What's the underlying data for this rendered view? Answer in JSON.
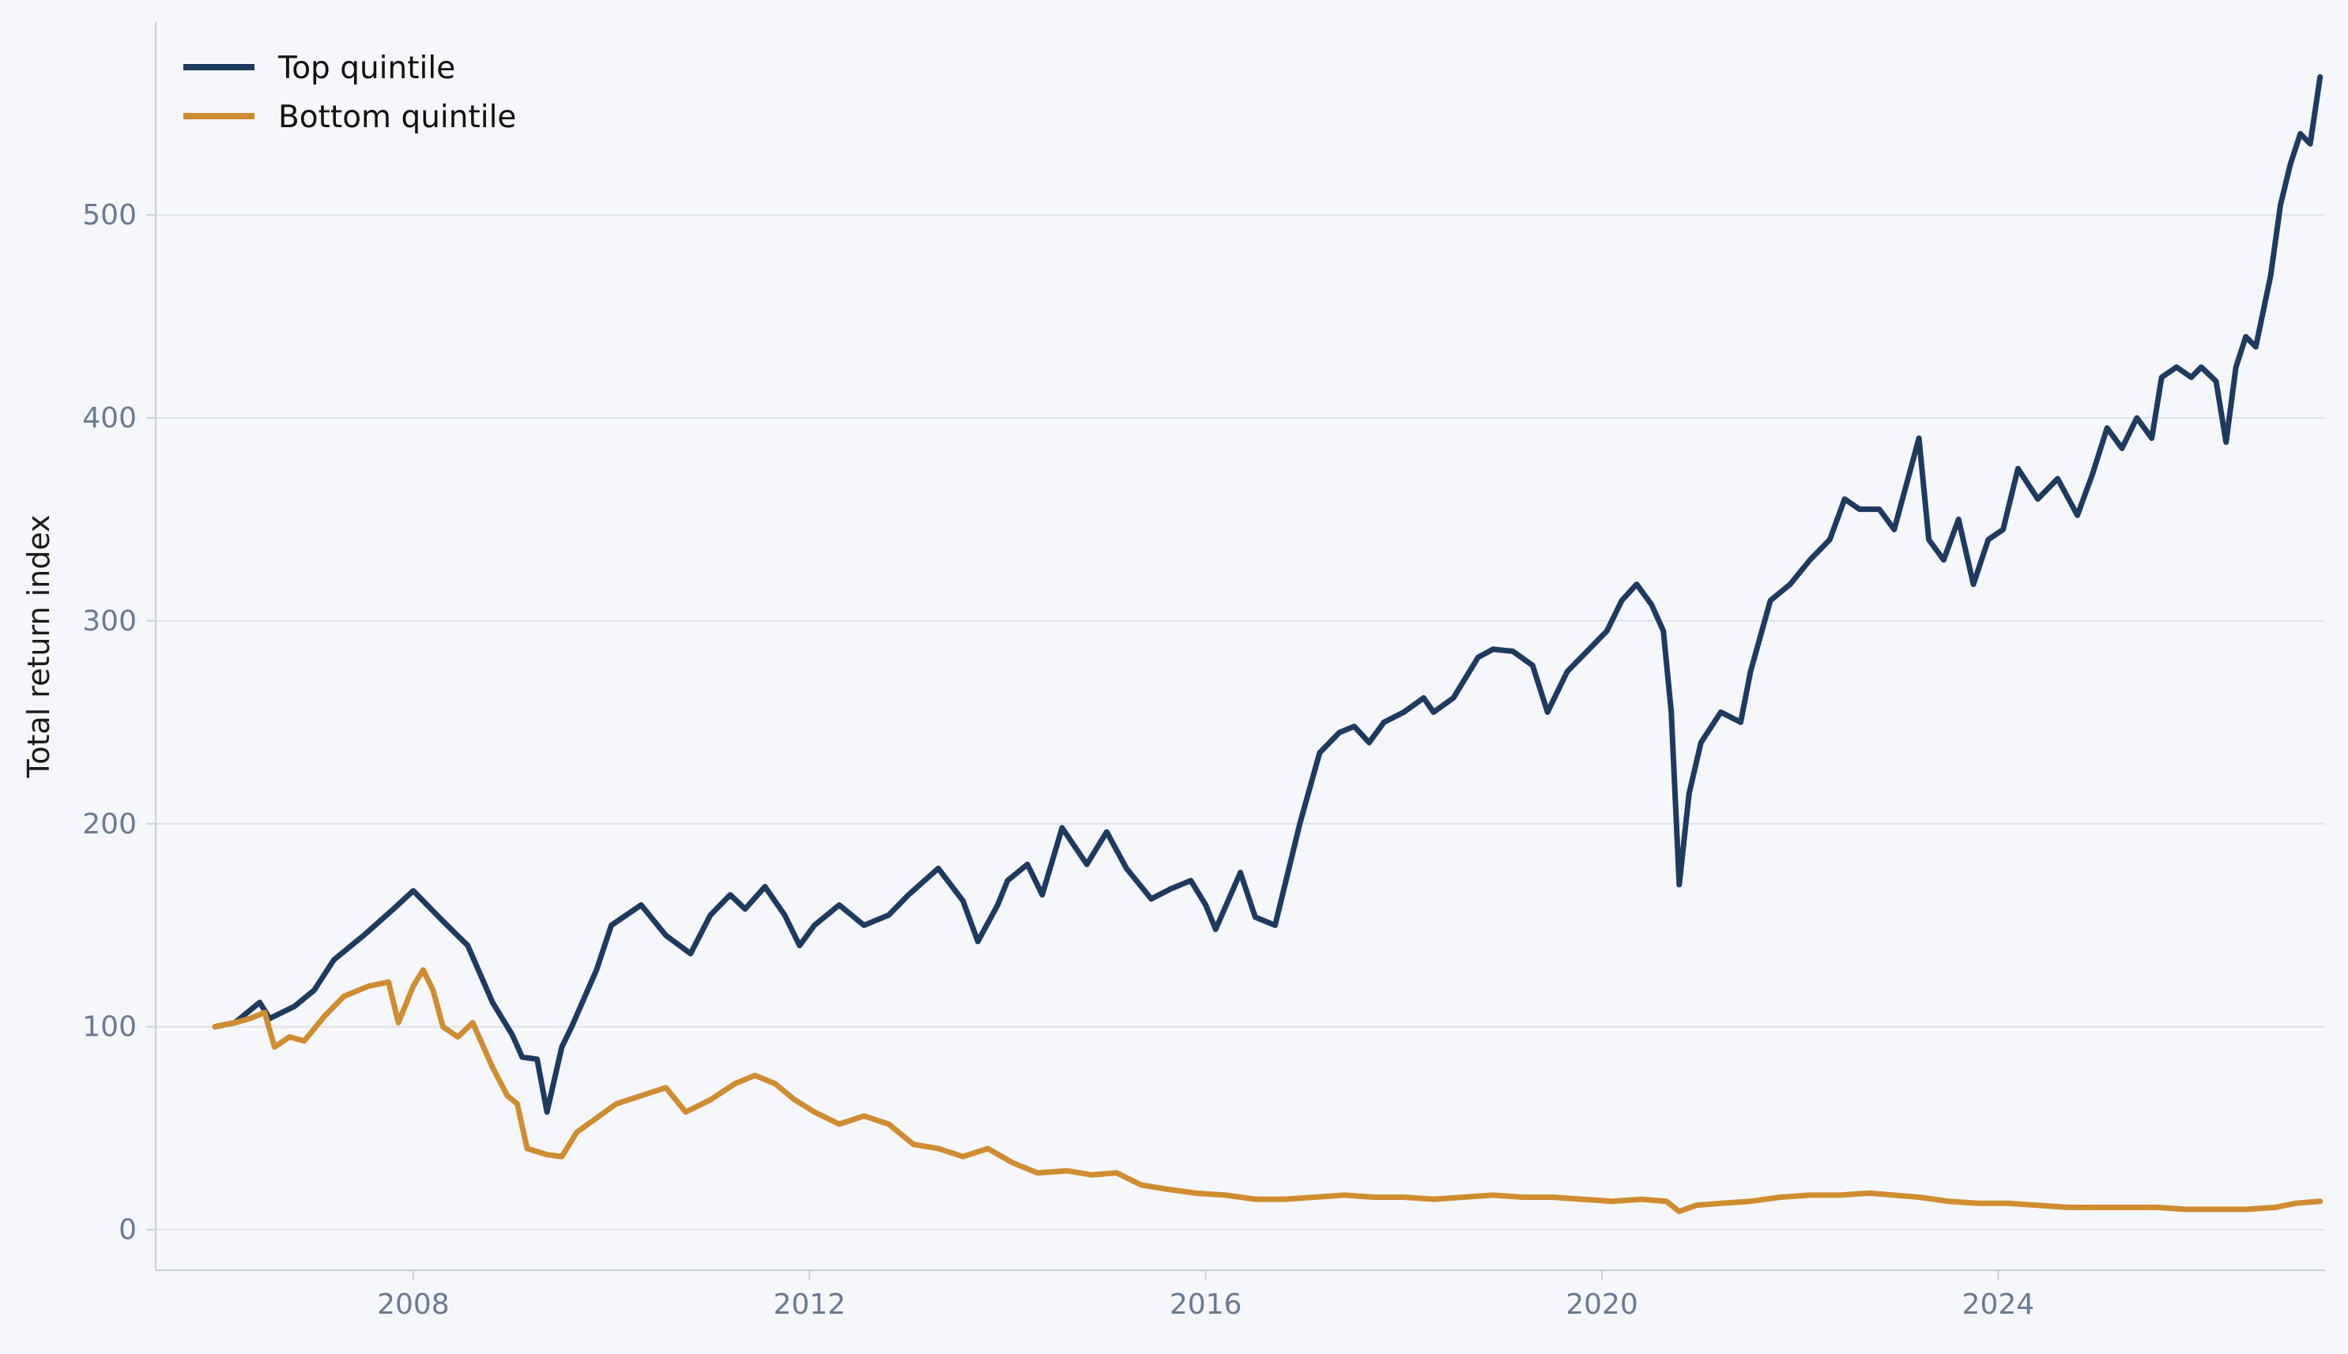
{
  "chart_data": {
    "type": "line",
    "title": "",
    "xlabel": "",
    "ylabel": "Total return index",
    "xlim": [
      2005.4,
      2027.3
    ],
    "ylim": [
      -20,
      595
    ],
    "x_ticks": [
      2008,
      2012,
      2016,
      2020,
      2024
    ],
    "x_tick_labels": [
      "2008",
      "2012",
      "2016",
      "2020",
      "2024"
    ],
    "y_ticks": [
      0,
      100,
      200,
      300,
      400,
      500
    ],
    "y_tick_labels": [
      "0",
      "100",
      "200",
      "300",
      "400",
      "500"
    ],
    "grid": "horizontal",
    "legend_position": "top-left",
    "series": [
      {
        "name": "Top quintile",
        "color": "#1f3a5f",
        "points": [
          [
            2006.0,
            100
          ],
          [
            2006.2,
            102
          ],
          [
            2006.45,
            112
          ],
          [
            2006.55,
            104
          ],
          [
            2006.8,
            110
          ],
          [
            2007.0,
            118
          ],
          [
            2007.2,
            133
          ],
          [
            2007.5,
            145
          ],
          [
            2007.8,
            158
          ],
          [
            2008.0,
            167
          ],
          [
            2008.3,
            152
          ],
          [
            2008.55,
            140
          ],
          [
            2008.8,
            112
          ],
          [
            2009.0,
            96
          ],
          [
            2009.1,
            85
          ],
          [
            2009.25,
            84
          ],
          [
            2009.35,
            58
          ],
          [
            2009.5,
            90
          ],
          [
            2009.6,
            100
          ],
          [
            2009.85,
            128
          ],
          [
            2010.0,
            150
          ],
          [
            2010.3,
            160
          ],
          [
            2010.55,
            145
          ],
          [
            2010.8,
            136
          ],
          [
            2011.0,
            155
          ],
          [
            2011.2,
            165
          ],
          [
            2011.35,
            158
          ],
          [
            2011.55,
            169
          ],
          [
            2011.75,
            155
          ],
          [
            2011.9,
            140
          ],
          [
            2012.05,
            150
          ],
          [
            2012.3,
            160
          ],
          [
            2012.55,
            150
          ],
          [
            2012.8,
            155
          ],
          [
            2013.0,
            165
          ],
          [
            2013.3,
            178
          ],
          [
            2013.55,
            162
          ],
          [
            2013.7,
            142
          ],
          [
            2013.9,
            160
          ],
          [
            2014.0,
            172
          ],
          [
            2014.2,
            180
          ],
          [
            2014.35,
            165
          ],
          [
            2014.55,
            198
          ],
          [
            2014.8,
            180
          ],
          [
            2015.0,
            196
          ],
          [
            2015.2,
            178
          ],
          [
            2015.45,
            163
          ],
          [
            2015.65,
            168
          ],
          [
            2015.85,
            172
          ],
          [
            2016.0,
            160
          ],
          [
            2016.1,
            148
          ],
          [
            2016.35,
            176
          ],
          [
            2016.5,
            154
          ],
          [
            2016.7,
            150
          ],
          [
            2016.95,
            200
          ],
          [
            2017.15,
            235
          ],
          [
            2017.35,
            245
          ],
          [
            2017.5,
            248
          ],
          [
            2017.65,
            240
          ],
          [
            2017.8,
            250
          ],
          [
            2018.0,
            255
          ],
          [
            2018.2,
            262
          ],
          [
            2018.3,
            255
          ],
          [
            2018.5,
            262
          ],
          [
            2018.75,
            282
          ],
          [
            2018.9,
            286
          ],
          [
            2019.1,
            285
          ],
          [
            2019.3,
            278
          ],
          [
            2019.45,
            255
          ],
          [
            2019.65,
            275
          ],
          [
            2019.85,
            285
          ],
          [
            2020.05,
            295
          ],
          [
            2020.2,
            310
          ],
          [
            2020.35,
            318
          ],
          [
            2020.5,
            308
          ],
          [
            2020.62,
            295
          ],
          [
            2020.7,
            255
          ],
          [
            2020.78,
            170
          ],
          [
            2020.88,
            215
          ],
          [
            2021.0,
            240
          ],
          [
            2021.2,
            255
          ],
          [
            2021.4,
            250
          ],
          [
            2021.5,
            275
          ],
          [
            2021.7,
            310
          ],
          [
            2021.9,
            318
          ],
          [
            2022.1,
            330
          ],
          [
            2022.3,
            340
          ],
          [
            2022.45,
            360
          ],
          [
            2022.6,
            355
          ],
          [
            2022.8,
            355
          ],
          [
            2022.95,
            345
          ],
          [
            2023.1,
            372
          ],
          [
            2023.2,
            390
          ],
          [
            2023.3,
            340
          ],
          [
            2023.45,
            330
          ],
          [
            2023.6,
            350
          ],
          [
            2023.75,
            318
          ],
          [
            2023.9,
            340
          ],
          [
            2024.05,
            345
          ],
          [
            2024.2,
            375
          ],
          [
            2024.4,
            360
          ],
          [
            2024.6,
            370
          ],
          [
            2024.8,
            352
          ],
          [
            2024.95,
            372
          ],
          [
            2025.1,
            395
          ],
          [
            2025.25,
            385
          ],
          [
            2025.4,
            400
          ],
          [
            2025.55,
            390
          ],
          [
            2025.65,
            420
          ],
          [
            2025.8,
            425
          ],
          [
            2025.95,
            420
          ],
          [
            2026.05,
            425
          ],
          [
            2026.2,
            418
          ],
          [
            2026.3,
            388
          ],
          [
            2026.4,
            425
          ],
          [
            2026.5,
            440
          ],
          [
            2026.6,
            435
          ],
          [
            2026.75,
            470
          ],
          [
            2026.85,
            505
          ],
          [
            2026.95,
            525
          ],
          [
            2027.05,
            540
          ],
          [
            2027.15,
            535
          ],
          [
            2027.25,
            568
          ]
        ]
      },
      {
        "name": "Bottom quintile",
        "color": "#d08c30",
        "points": [
          [
            2006.0,
            100
          ],
          [
            2006.2,
            102
          ],
          [
            2006.35,
            104
          ],
          [
            2006.5,
            107
          ],
          [
            2006.6,
            90
          ],
          [
            2006.75,
            95
          ],
          [
            2006.9,
            93
          ],
          [
            2007.1,
            105
          ],
          [
            2007.3,
            115
          ],
          [
            2007.55,
            120
          ],
          [
            2007.75,
            122
          ],
          [
            2007.85,
            102
          ],
          [
            2008.0,
            120
          ],
          [
            2008.1,
            128
          ],
          [
            2008.2,
            118
          ],
          [
            2008.3,
            100
          ],
          [
            2008.45,
            95
          ],
          [
            2008.6,
            102
          ],
          [
            2008.8,
            80
          ],
          [
            2008.95,
            66
          ],
          [
            2009.05,
            62
          ],
          [
            2009.15,
            40
          ],
          [
            2009.35,
            37
          ],
          [
            2009.5,
            36
          ],
          [
            2009.65,
            48
          ],
          [
            2009.85,
            55
          ],
          [
            2010.05,
            62
          ],
          [
            2010.3,
            66
          ],
          [
            2010.55,
            70
          ],
          [
            2010.75,
            58
          ],
          [
            2011.0,
            64
          ],
          [
            2011.25,
            72
          ],
          [
            2011.45,
            76
          ],
          [
            2011.65,
            72
          ],
          [
            2011.85,
            64
          ],
          [
            2012.05,
            58
          ],
          [
            2012.3,
            52
          ],
          [
            2012.55,
            56
          ],
          [
            2012.8,
            52
          ],
          [
            2013.05,
            42
          ],
          [
            2013.3,
            40
          ],
          [
            2013.55,
            36
          ],
          [
            2013.8,
            40
          ],
          [
            2014.05,
            33
          ],
          [
            2014.3,
            28
          ],
          [
            2014.6,
            29
          ],
          [
            2014.85,
            27
          ],
          [
            2015.1,
            28
          ],
          [
            2015.35,
            22
          ],
          [
            2015.6,
            20
          ],
          [
            2015.9,
            18
          ],
          [
            2016.2,
            17
          ],
          [
            2016.5,
            15
          ],
          [
            2016.8,
            15
          ],
          [
            2017.1,
            16
          ],
          [
            2017.4,
            17
          ],
          [
            2017.7,
            16
          ],
          [
            2018.0,
            16
          ],
          [
            2018.3,
            15
          ],
          [
            2018.6,
            16
          ],
          [
            2018.9,
            17
          ],
          [
            2019.2,
            16
          ],
          [
            2019.5,
            16
          ],
          [
            2019.8,
            15
          ],
          [
            2020.1,
            14
          ],
          [
            2020.4,
            15
          ],
          [
            2020.65,
            14
          ],
          [
            2020.78,
            9
          ],
          [
            2020.95,
            12
          ],
          [
            2021.2,
            13
          ],
          [
            2021.5,
            14
          ],
          [
            2021.8,
            16
          ],
          [
            2022.1,
            17
          ],
          [
            2022.4,
            17
          ],
          [
            2022.7,
            18
          ],
          [
            2022.95,
            17
          ],
          [
            2023.2,
            16
          ],
          [
            2023.5,
            14
          ],
          [
            2023.8,
            13
          ],
          [
            2024.1,
            13
          ],
          [
            2024.4,
            12
          ],
          [
            2024.7,
            11
          ],
          [
            2025.0,
            11
          ],
          [
            2025.3,
            11
          ],
          [
            2025.6,
            11
          ],
          [
            2025.9,
            10
          ],
          [
            2026.2,
            10
          ],
          [
            2026.5,
            10
          ],
          [
            2026.8,
            11
          ],
          [
            2027.0,
            13
          ],
          [
            2027.25,
            14
          ]
        ]
      }
    ]
  }
}
